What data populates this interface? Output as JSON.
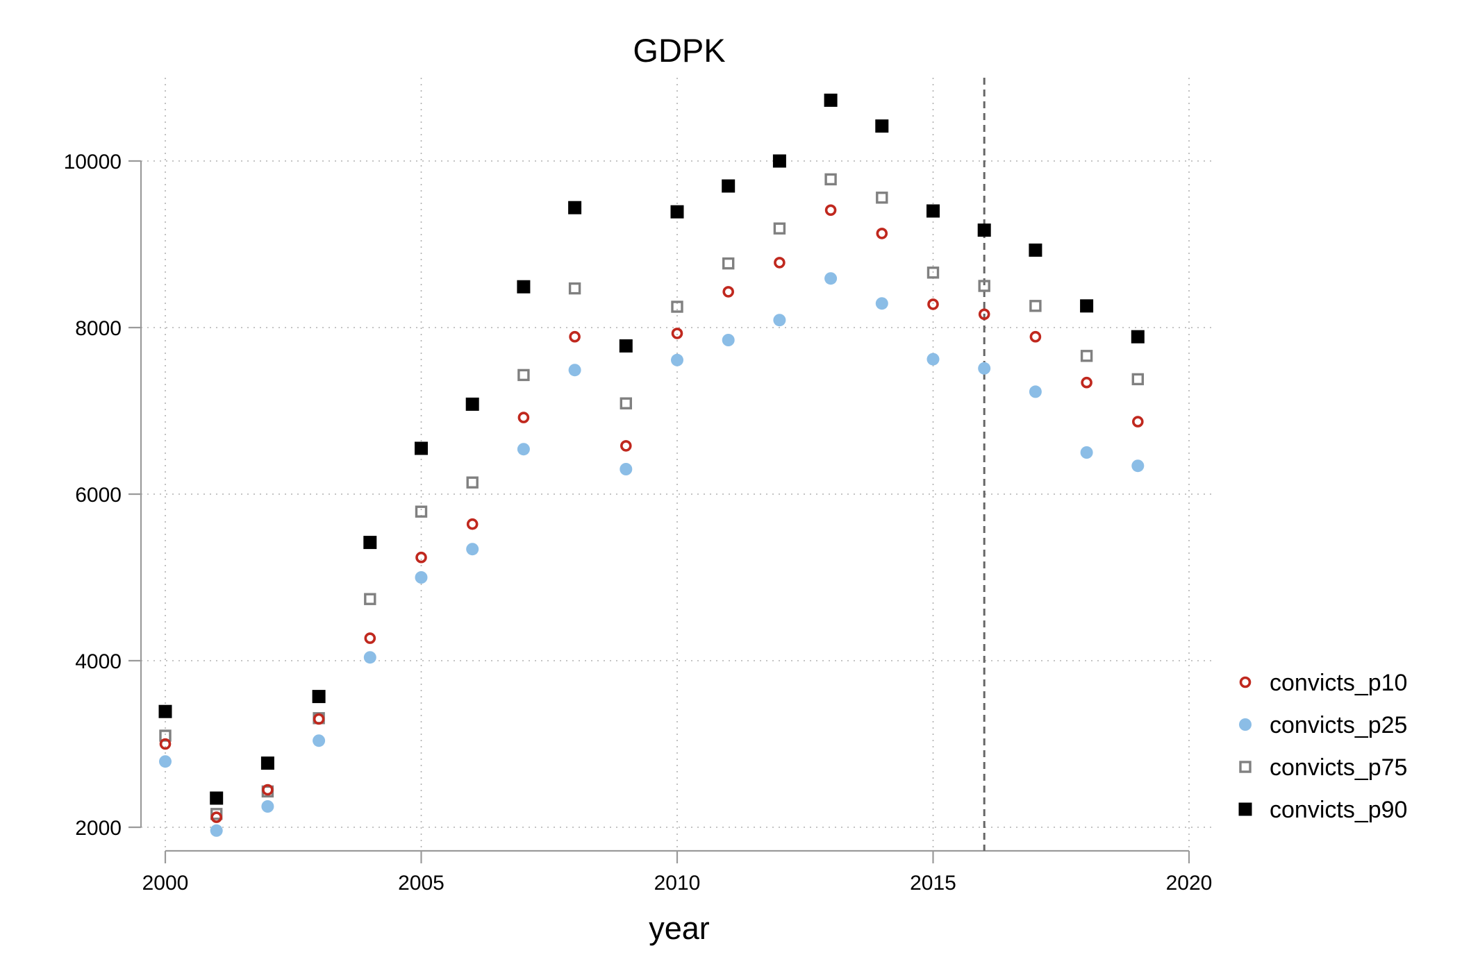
{
  "chart_data": {
    "type": "scatter",
    "title": "GDPK",
    "xlabel": "year",
    "ylabel": "",
    "xlim": [
      2000,
      2020
    ],
    "ylim": [
      1700,
      11000
    ],
    "xticks": [
      2000,
      2005,
      2010,
      2015,
      2020
    ],
    "yticks": [
      2000,
      4000,
      6000,
      8000,
      10000
    ],
    "grid": true,
    "legend_position": "right",
    "reference_line_x": 2016,
    "x": [
      2000,
      2001,
      2002,
      2003,
      2004,
      2005,
      2006,
      2007,
      2008,
      2009,
      2010,
      2011,
      2012,
      2013,
      2014,
      2015,
      2016,
      2017,
      2018,
      2019
    ],
    "series": [
      {
        "name": "convicts_p10",
        "marker": "hollow-circle",
        "color": "#c0281e",
        "values": [
          3000,
          2120,
          2450,
          3300,
          4270,
          5240,
          5640,
          6920,
          7890,
          6580,
          7930,
          8430,
          8780,
          9410,
          9130,
          8280,
          8160,
          7890,
          7340,
          6870
        ]
      },
      {
        "name": "convicts_p25",
        "marker": "filled-circle",
        "color": "#8bbde6",
        "values": [
          2790,
          1960,
          2250,
          3040,
          4040,
          5000,
          5340,
          6540,
          7490,
          6300,
          7610,
          7850,
          8090,
          8590,
          8290,
          7620,
          7510,
          7230,
          6500,
          6340
        ]
      },
      {
        "name": "convicts_p75",
        "marker": "hollow-square",
        "color": "#808080",
        "values": [
          3100,
          2160,
          2430,
          3310,
          4740,
          5790,
          6140,
          7430,
          8470,
          7090,
          8250,
          8770,
          9190,
          9780,
          9560,
          8660,
          8500,
          8260,
          7660,
          7380
        ]
      },
      {
        "name": "convicts_p90",
        "marker": "filled-square",
        "color": "#000000",
        "values": [
          3390,
          2350,
          2770,
          3570,
          5420,
          6550,
          7080,
          8490,
          9440,
          7780,
          9390,
          9700,
          10000,
          10730,
          10420,
          9400,
          9170,
          8930,
          8260,
          7890
        ]
      }
    ]
  }
}
